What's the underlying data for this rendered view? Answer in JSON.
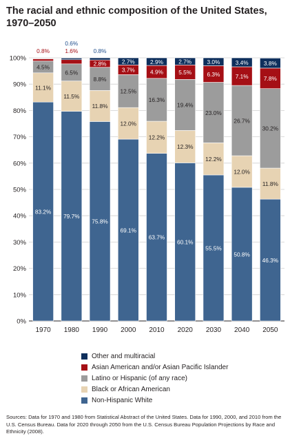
{
  "chart_data": {
    "type": "bar",
    "stacked": true,
    "title": "The racial and ethnic composition of the United States, 1970–2050",
    "categories": [
      "1970",
      "1980",
      "1990",
      "2000",
      "2010",
      "2020",
      "2030",
      "2040",
      "2050"
    ],
    "y_ticks": [
      "0%",
      "10%",
      "20%",
      "30%",
      "40%",
      "50%",
      "60%",
      "70%",
      "80%",
      "90%",
      "100%"
    ],
    "ylim": [
      0,
      100
    ],
    "grid": true,
    "legend_position": "bottom",
    "series": [
      {
        "name": "Non-Hispanic White",
        "color": "#3f6590",
        "values": [
          83.2,
          79.7,
          75.8,
          69.1,
          63.7,
          60.1,
          55.5,
          50.8,
          46.3
        ],
        "labels": [
          "83.2%",
          "79.7%",
          "75.8%",
          "69.1%",
          "63.7%",
          "60.1%",
          "55.5%",
          "50.8%",
          "46.3%"
        ]
      },
      {
        "name": "Black or African American",
        "color": "#e7d3b3",
        "values": [
          11.1,
          11.5,
          11.8,
          12.0,
          12.2,
          12.3,
          12.2,
          12.0,
          11.8
        ],
        "labels": [
          "11.1%",
          "11.5%",
          "11.8%",
          "12.0%",
          "12.2%",
          "12.3%",
          "12.2%",
          "12.0%",
          "11.8%"
        ]
      },
      {
        "name": "Latino or Hispanic (of any race)",
        "color": "#9c9c9c",
        "values": [
          4.5,
          6.5,
          8.8,
          12.5,
          16.3,
          19.4,
          23.0,
          26.7,
          30.2
        ],
        "labels": [
          "4.5%",
          "6.5%",
          "8.8%",
          "12.5%",
          "16.3%",
          "19.4%",
          "23.0%",
          "26.7%",
          "30.2%"
        ]
      },
      {
        "name": "Asian American and/or Asian Pacific Islander",
        "color": "#a50f15",
        "values": [
          0.8,
          1.6,
          2.8,
          3.7,
          4.9,
          5.5,
          6.3,
          7.1,
          7.8
        ],
        "labels": [
          "0.8%",
          "1.6%",
          "2.8%",
          "3.7%",
          "4.9%",
          "5.5%",
          "6.3%",
          "7.1%",
          "7.8%"
        ]
      },
      {
        "name": "Other and multiracial",
        "color": "#0e2f5c",
        "values": [
          0,
          0.6,
          0.8,
          2.7,
          2.9,
          2.7,
          3.0,
          3.4,
          3.8
        ],
        "labels": [
          "",
          "0.6%",
          "0.8%",
          "2.7%",
          "2.9%",
          "2.7%",
          "3.0%",
          "3.4%",
          "3.8%"
        ]
      }
    ],
    "legend_order": [
      "Other and multiracial",
      "Asian American and/or Asian Pacific Islander",
      "Latino or Hispanic (of any race)",
      "Black or African American",
      "Non-Hispanic White"
    ],
    "source_note": "Sources: Data for 1970 and 1980 from Statistical Abstract of the United States. Data for 1990, 2000, and 2010 from the U.S. Census Bureau. Data for 2020 through 2050 from the U.S. Census Bureau Population Projections by Race and Ethnicity (2008)."
  }
}
